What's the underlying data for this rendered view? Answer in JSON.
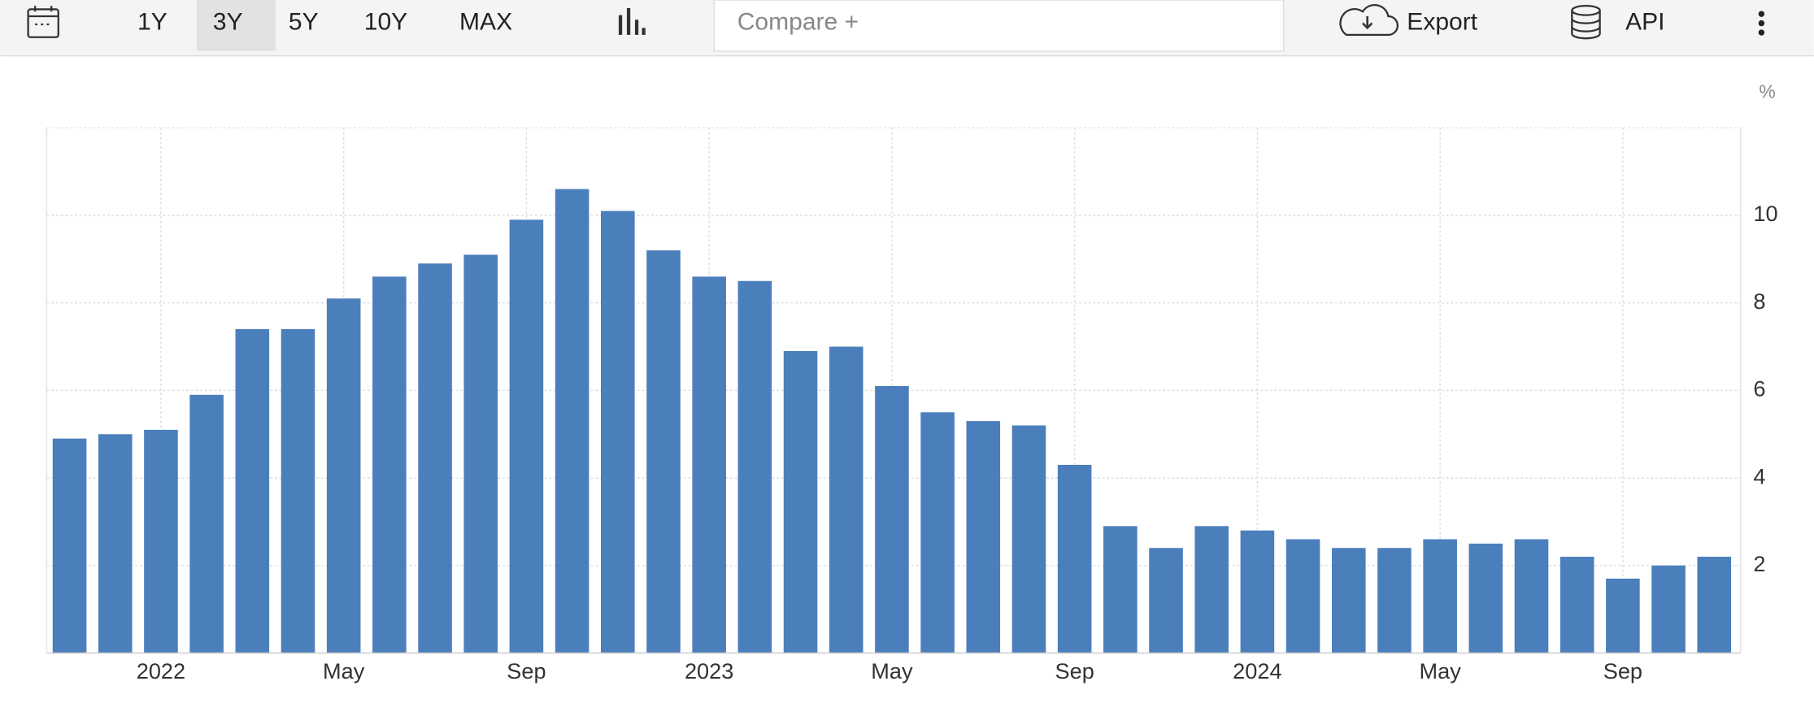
{
  "toolbar": {
    "ranges": [
      "1Y",
      "3Y",
      "5Y",
      "10Y",
      "MAX"
    ],
    "selected_range": "3Y",
    "compare_placeholder": "Compare +",
    "export": "Export",
    "api": "API"
  },
  "chart_data": {
    "type": "bar",
    "y_unit": "%",
    "categories": [
      null,
      null,
      "2022",
      null,
      null,
      null,
      "May",
      null,
      null,
      null,
      "Sep",
      null,
      null,
      null,
      "2023",
      null,
      null,
      null,
      "May",
      null,
      null,
      null,
      "Sep",
      null,
      null,
      null,
      "2024",
      null,
      null,
      null,
      "May",
      null,
      null,
      null,
      "Sep",
      null,
      null
    ],
    "values": [
      4.9,
      5.0,
      5.1,
      5.9,
      7.4,
      7.4,
      8.1,
      8.6,
      8.9,
      9.1,
      9.9,
      10.6,
      10.1,
      9.2,
      8.6,
      8.5,
      6.9,
      7.0,
      6.1,
      5.5,
      5.3,
      5.2,
      4.3,
      2.9,
      2.4,
      2.9,
      2.8,
      2.6,
      2.4,
      2.4,
      2.6,
      2.5,
      2.6,
      2.2,
      1.7,
      2.0,
      2.2
    ],
    "color": "#4b7fbc",
    "ylim": [
      0,
      12
    ],
    "yticks": [
      2,
      4,
      6,
      8,
      10
    ],
    "grid": true
  }
}
